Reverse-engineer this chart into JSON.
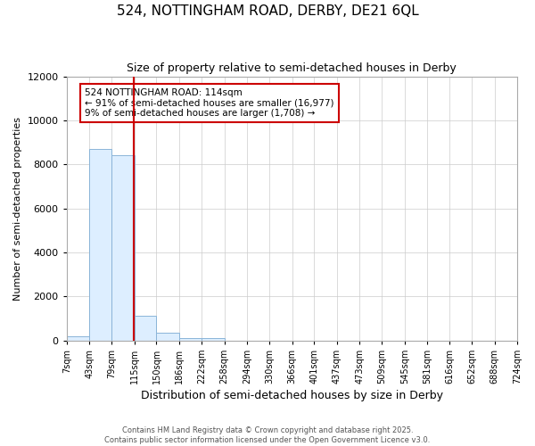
{
  "title1": "524, NOTTINGHAM ROAD, DERBY, DE21 6QL",
  "title2": "Size of property relative to semi-detached houses in Derby",
  "xlabel": "Distribution of semi-detached houses by size in Derby",
  "ylabel": "Number of semi-detached properties",
  "bin_edges": [
    7,
    43,
    79,
    115,
    150,
    186,
    222,
    258,
    294,
    330,
    366,
    401,
    437,
    473,
    509,
    545,
    581,
    616,
    652,
    688,
    724
  ],
  "bar_heights": [
    200,
    8700,
    8400,
    1100,
    350,
    100,
    100,
    0,
    0,
    0,
    0,
    0,
    0,
    0,
    0,
    0,
    0,
    0,
    0,
    0
  ],
  "bar_color": "#ddeeff",
  "bar_edge_color": "#8ab4d8",
  "property_size": 114,
  "red_line_color": "#cc0000",
  "annotation_line1": "524 NOTTINGHAM ROAD: 114sqm",
  "annotation_line2": "← 91% of semi-detached houses are smaller (16,977)",
  "annotation_line3": "9% of semi-detached houses are larger (1,708) →",
  "ylim": [
    0,
    12000
  ],
  "yticks": [
    0,
    2000,
    4000,
    6000,
    8000,
    10000,
    12000
  ],
  "footer1": "Contains HM Land Registry data © Crown copyright and database right 2025.",
  "footer2": "Contains public sector information licensed under the Open Government Licence v3.0.",
  "background_color": "#ffffff",
  "grid_color": "#cccccc"
}
